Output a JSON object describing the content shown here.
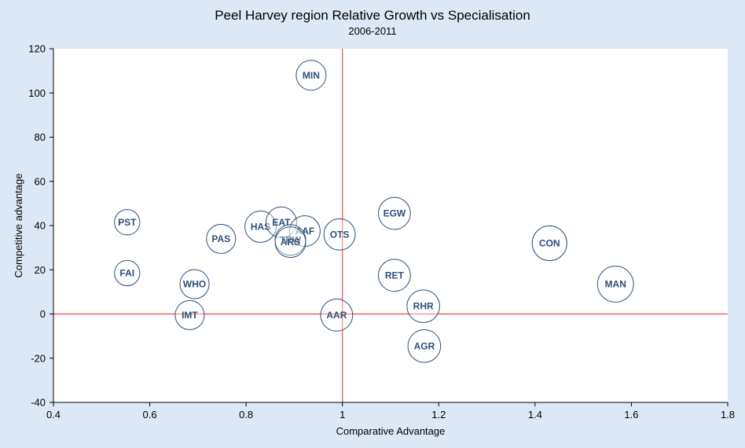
{
  "chart_data": {
    "type": "scatter",
    "title": "Peel Harvey region Relative Growth vs Specialisation",
    "subtitle": "2006-2011",
    "xlabel": "Comparative Advantage",
    "ylabel": "Competitive advantage",
    "xlim": [
      0.4,
      1.8
    ],
    "ylim": [
      -40,
      120
    ],
    "xticks": [
      "0.4",
      "0.6",
      "0.8",
      "1",
      "1.2",
      "1.4",
      "1.6",
      "1.8"
    ],
    "yticks": [
      "-40",
      "-20",
      "0",
      "20",
      "40",
      "60",
      "80",
      "100",
      "120"
    ],
    "reference_lines": {
      "x": 1,
      "y": 0
    },
    "grid": false,
    "legend": "none",
    "colors": {
      "background": "#dce8f5",
      "plot_area": "#ffffff",
      "bubble_stroke": "#2d4f78",
      "bubble_fill": "#ffffff",
      "label": "#2d4f78",
      "reference_line": "#e74c4c",
      "axis": "#000000"
    },
    "points": [
      {
        "label": "MIN",
        "x": 0.935,
        "y": 108,
        "size": 1.0
      },
      {
        "label": "PST",
        "x": 0.553,
        "y": 41.5,
        "size": 0.72
      },
      {
        "label": "FAI",
        "x": 0.553,
        "y": 18.5,
        "size": 0.72
      },
      {
        "label": "WHO",
        "x": 0.693,
        "y": 13.5,
        "size": 0.95
      },
      {
        "label": "IMT",
        "x": 0.683,
        "y": -0.5,
        "size": 0.95
      },
      {
        "label": "PAS",
        "x": 0.748,
        "y": 34,
        "size": 0.95
      },
      {
        "label": "HAS",
        "x": 0.83,
        "y": 39.5,
        "size": 1.1
      },
      {
        "label": "EAT",
        "x": 0.873,
        "y": 41.5,
        "size": 1.05
      },
      {
        "label": "AAF",
        "x": 0.922,
        "y": 37.5,
        "size": 1.05
      },
      {
        "label": "TRW",
        "x": 0.892,
        "y": 33.5,
        "size": 1.05
      },
      {
        "label": "ARS",
        "x": 0.892,
        "y": 32.5,
        "size": 1.05
      },
      {
        "label": "OTS",
        "x": 0.994,
        "y": 36,
        "size": 1.1
      },
      {
        "label": "AAR",
        "x": 0.988,
        "y": -0.5,
        "size": 1.15
      },
      {
        "label": "EGW",
        "x": 1.108,
        "y": 45.5,
        "size": 1.15
      },
      {
        "label": "RET",
        "x": 1.108,
        "y": 17.5,
        "size": 1.15
      },
      {
        "label": "RHR",
        "x": 1.168,
        "y": 3.5,
        "size": 1.2
      },
      {
        "label": "AGR",
        "x": 1.17,
        "y": -14.5,
        "size": 1.2
      },
      {
        "label": "CON",
        "x": 1.43,
        "y": 32,
        "size": 1.35
      },
      {
        "label": "MAN",
        "x": 1.567,
        "y": 13.5,
        "size": 1.45
      }
    ]
  }
}
